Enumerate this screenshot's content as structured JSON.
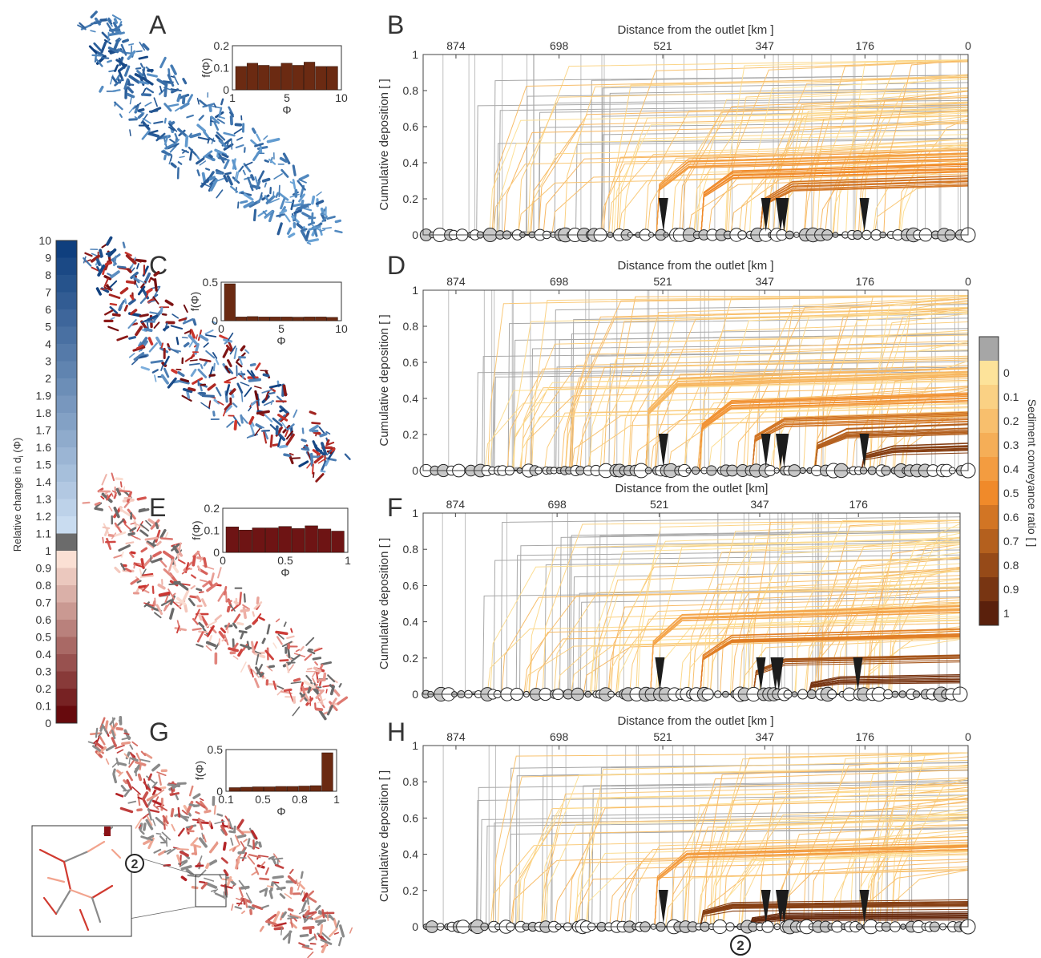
{
  "panels": {
    "a": "A",
    "b": "B",
    "c": "C",
    "d": "D",
    "e": "E",
    "f": "F",
    "g": "G",
    "h": "H"
  },
  "colors": {
    "blue_dark": "#0f3f7e",
    "blue_light": "#c9dcf0",
    "gray_neutral": "#6b6b6b",
    "red_light": "#fbe0d4",
    "red_dark": "#670a0d",
    "hist_brown": "#6b2a12",
    "hist_maroon": "#6e1414",
    "conveyance_gray": "#a6a6a6",
    "conveyance_light": "#fde39a",
    "conveyance_mid": "#f08a2a",
    "conveyance_dark": "#5a200c",
    "arrow": "#1c1c1c"
  },
  "histograms": [
    {
      "id": "A",
      "ylabel": "f(Φ)",
      "xlabel": "Φ",
      "xticks": [
        "1",
        "5",
        "10"
      ],
      "yticks": [
        "0",
        "0.1",
        "0.2"
      ],
      "ymax": 0.2,
      "values": [
        0.11,
        0.125,
        0.115,
        0.11,
        0.125,
        0.115,
        0.13,
        0.11,
        0.11
      ],
      "color": "#6b2a12"
    },
    {
      "id": "C",
      "ylabel": "f(Φ)",
      "xlabel": "Φ",
      "xticks": [
        "0",
        "5",
        "10"
      ],
      "yticks": [
        "0",
        "0.5"
      ],
      "ymax": 0.5,
      "values": [
        0.5,
        0.05,
        0.055,
        0.05,
        0.05,
        0.05,
        0.048,
        0.05,
        0.05,
        0.045
      ],
      "color": "#6b2a12"
    },
    {
      "id": "E",
      "ylabel": "f(Φ)",
      "xlabel": "Φ",
      "xticks": [
        "0",
        "0.5",
        "1"
      ],
      "yticks": [
        "0",
        "0.1",
        "0.2"
      ],
      "ymax": 0.2,
      "values": [
        0.12,
        0.105,
        0.115,
        0.115,
        0.122,
        0.112,
        0.125,
        0.11,
        0.1
      ],
      "color": "#6e1414"
    },
    {
      "id": "G",
      "ylabel": "f(Φ)",
      "xlabel": "Φ",
      "xticks": [
        "0.1",
        "0.5",
        "0.8",
        "1"
      ],
      "yticks": [
        "0",
        "0.5"
      ],
      "ymax": 0.5,
      "values": [
        0.045,
        0.05,
        0.055,
        0.055,
        0.06,
        0.06,
        0.065,
        0.07,
        0.48
      ],
      "color": "#6b2a12"
    }
  ],
  "left_colorbar": {
    "title_main": "Relative change in d",
    "title_sub": "i",
    "title_tail": " (Φ)",
    "labels": [
      "10",
      "9",
      "8",
      "7",
      "6",
      "5",
      "4",
      "3",
      "2",
      "1.9",
      "1.8",
      "1.7",
      "1.6",
      "1.5",
      "1.4",
      "1.3",
      "1.2",
      "1.1",
      "1",
      "0.9",
      "0.8",
      "0.7",
      "0.6",
      "0.5",
      "0.4",
      "0.3",
      "0.2",
      "0.1",
      "0"
    ]
  },
  "right_colorbar": {
    "title": "Sediment conveyance ratio [ ]",
    "labels": [
      "0",
      "0.1",
      "0.2",
      "0.3",
      "0.4",
      "0.5",
      "0.6",
      "0.7",
      "0.8",
      "0.9",
      "1"
    ]
  },
  "chart_data": [
    {
      "id": "B",
      "type": "line",
      "title": "",
      "xlabel": "Distance from the outlet [km  ]",
      "ylabel": "Cumulative deposition [ ]",
      "xticks": [
        "874",
        "698",
        "521",
        "347",
        "176",
        "0"
      ],
      "yticks": [
        "0",
        "0.2",
        "0.4",
        "0.6",
        "0.8",
        "1"
      ],
      "xlim": [
        930,
        0
      ],
      "ylim": [
        0,
        1
      ],
      "conveyance_levels": [
        0.4,
        0.5,
        0.6
      ],
      "upper_envelope": 0.97
    },
    {
      "id": "D",
      "type": "line",
      "title": "",
      "xlabel": "Distance from the outlet [km  ]",
      "ylabel": "Cumulative deposition [ ]",
      "xticks": [
        "874",
        "698",
        "521",
        "347",
        "176",
        "0"
      ],
      "yticks": [
        "0",
        "0.2",
        "0.4",
        "0.6",
        "0.8",
        "1"
      ],
      "xlim": [
        930,
        0
      ],
      "ylim": [
        0,
        1
      ],
      "conveyance_levels": [
        0.25,
        0.45,
        0.6,
        0.7,
        0.85
      ],
      "upper_envelope": 0.97
    },
    {
      "id": "F",
      "type": "line",
      "title": "",
      "xlabel": "Distance from the outlet [km]",
      "ylabel": "Cumulative deposition [ ]",
      "xticks": [
        "874",
        "698",
        "521",
        "347",
        "176"
      ],
      "yticks": [
        "0",
        "0.2",
        "0.4",
        "0.6",
        "0.8",
        "1"
      ],
      "xlim": [
        930,
        0
      ],
      "ylim": [
        0,
        1
      ],
      "conveyance_levels": [
        0.35,
        0.55,
        0.75,
        0.9
      ],
      "upper_envelope": 0.96
    },
    {
      "id": "H",
      "type": "line",
      "title": "",
      "xlabel": "Distance from the outlet [km  ]",
      "ylabel": "Cumulative deposition [ ]",
      "xticks": [
        "874",
        "698",
        "521",
        "347",
        "176",
        "0"
      ],
      "yticks": [
        "0",
        "0.2",
        "0.4",
        "0.6",
        "0.8",
        "1"
      ],
      "xlim": [
        930,
        0
      ],
      "ylim": [
        0,
        1
      ],
      "conveyance_levels": [
        0.4,
        0.85,
        0.95
      ],
      "upper_envelope": 0.96
    }
  ],
  "markers": {
    "arrow_km": [
      520,
      345,
      320,
      314,
      177
    ],
    "callout_label": "2"
  }
}
